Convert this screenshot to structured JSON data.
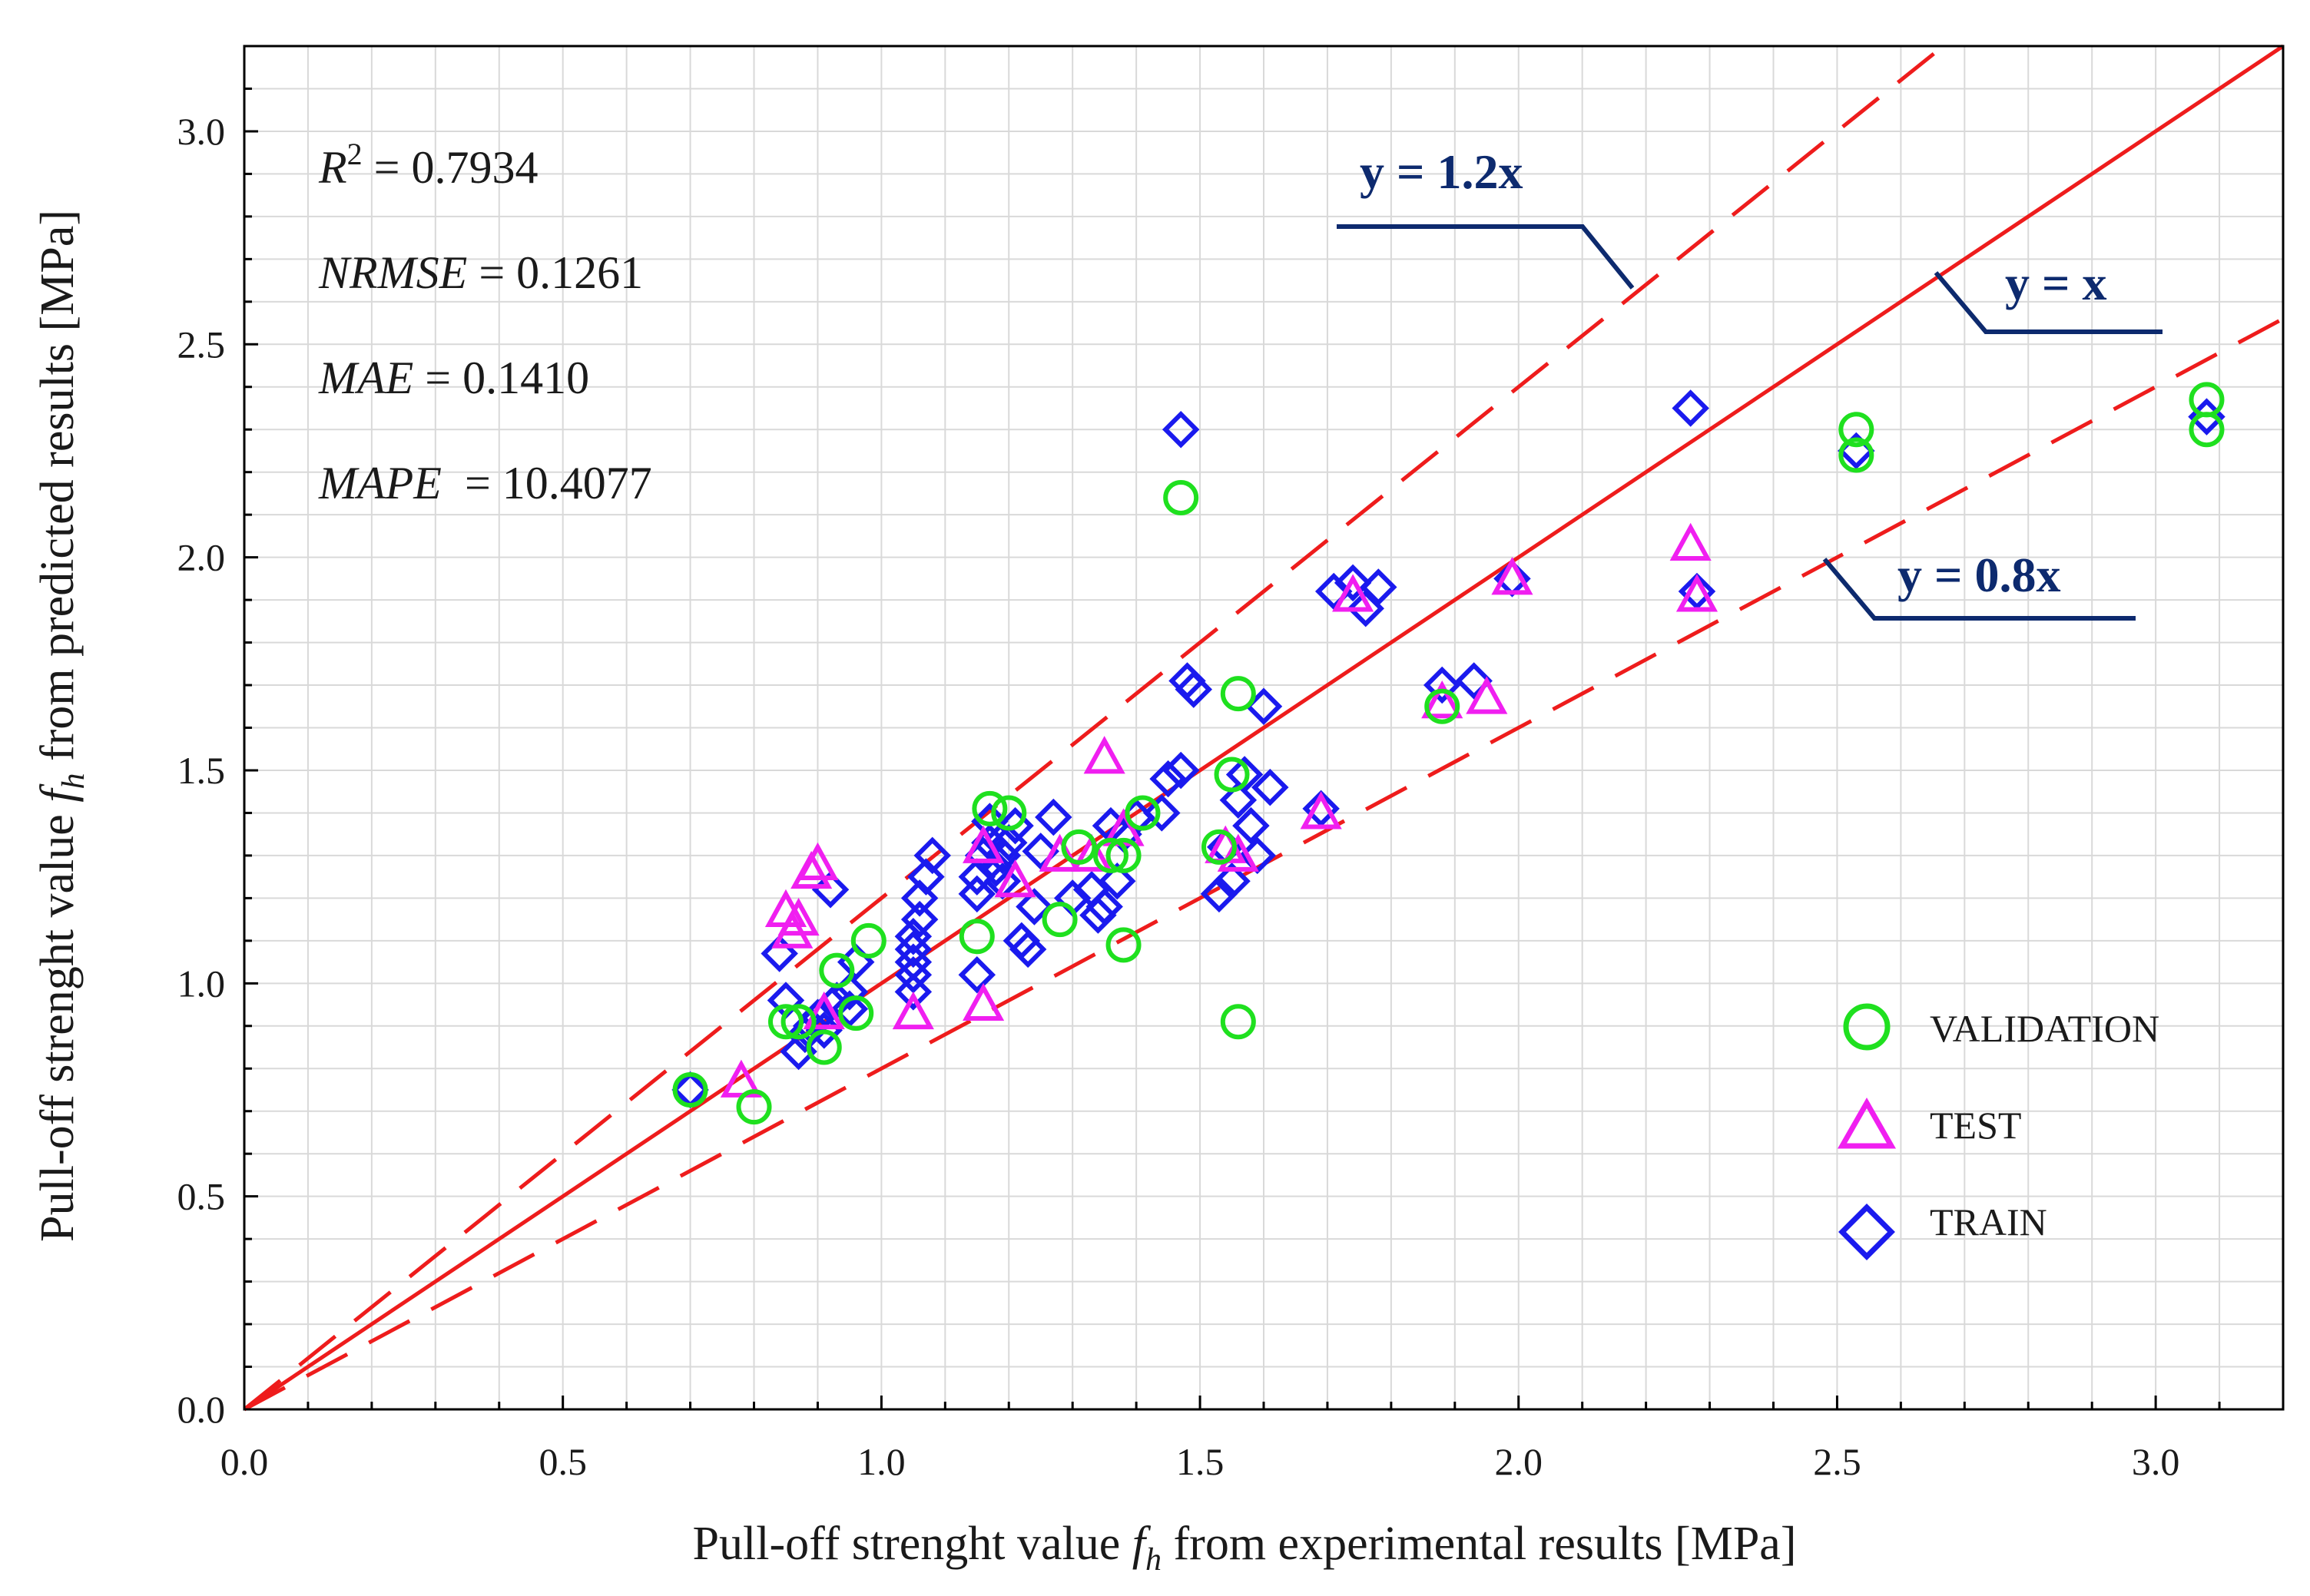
{
  "chart_data": {
    "type": "scatter",
    "xlabel_parts": [
      "Pull-off strenght value ",
      "f",
      "h",
      " from experimental results [MPa]"
    ],
    "ylabel_parts": [
      "Pull-off strenght value ",
      "f",
      "h",
      " from predicted results [MPa]"
    ],
    "xlim": [
      0,
      3.2
    ],
    "ylim": [
      0,
      3.2
    ],
    "major_ticks": [
      0,
      0.5,
      1.0,
      1.5,
      2.0,
      2.5,
      3.0
    ],
    "major_tick_labels": [
      "0.0",
      "0.5",
      "1.0",
      "1.5",
      "2.0",
      "2.5",
      "3.0"
    ],
    "minor_step": 0.1,
    "grid": true,
    "stats": [
      {
        "name": "R",
        "sup": "2",
        "rest": " = 0.7934"
      },
      {
        "name": "NRMSE",
        "sup": "",
        "rest": " = 0.1261"
      },
      {
        "name": "MAE",
        "sup": "",
        "rest": " = 0.1410"
      },
      {
        "name": "MAPE",
        "sup": "",
        "rest": "  = 10.4077"
      }
    ],
    "reference_lines": [
      {
        "label": "y = 1.2x",
        "slope": 1.2,
        "style": "dashed",
        "color": "#ee1c1c"
      },
      {
        "label": "y = x",
        "slope": 1.0,
        "style": "solid",
        "color": "#ee1c1c"
      },
      {
        "label": "y = 0.8x",
        "slope": 0.8,
        "style": "dashed",
        "color": "#ee1c1c"
      }
    ],
    "legend": {
      "placement": "bottom-right",
      "entries": [
        {
          "label": "VALIDATION",
          "marker": "circle",
          "color": "#1fe01f"
        },
        {
          "label": "TEST",
          "marker": "triangle",
          "color": "#f01ff0"
        },
        {
          "label": "TRAIN",
          "marker": "diamond",
          "color": "#1a1aee"
        }
      ]
    },
    "series": [
      {
        "name": "TRAIN",
        "marker": "diamond",
        "color": "#1a1aee",
        "points": [
          [
            0.7,
            0.75
          ],
          [
            0.85,
            0.96
          ],
          [
            0.87,
            0.84
          ],
          [
            0.88,
            0.88
          ],
          [
            0.89,
            0.9
          ],
          [
            0.9,
            0.92
          ],
          [
            0.91,
            0.89
          ],
          [
            0.93,
            0.96
          ],
          [
            0.95,
            0.94
          ],
          [
            0.96,
            1.05
          ],
          [
            0.92,
            1.22
          ],
          [
            0.95,
            0.98
          ],
          [
            0.84,
            1.07
          ],
          [
            1.05,
            0.98
          ],
          [
            1.05,
            1.02
          ],
          [
            1.05,
            1.05
          ],
          [
            1.05,
            1.08
          ],
          [
            1.05,
            1.11
          ],
          [
            1.06,
            1.15
          ],
          [
            1.06,
            1.2
          ],
          [
            1.07,
            1.25
          ],
          [
            1.08,
            1.3
          ],
          [
            1.15,
            1.02
          ],
          [
            1.15,
            1.21
          ],
          [
            1.15,
            1.25
          ],
          [
            1.16,
            1.3
          ],
          [
            1.17,
            1.33
          ],
          [
            1.17,
            1.38
          ],
          [
            1.18,
            1.27
          ],
          [
            1.19,
            1.24
          ],
          [
            1.19,
            1.3
          ],
          [
            1.2,
            1.33
          ],
          [
            1.21,
            1.37
          ],
          [
            1.22,
            1.1
          ],
          [
            1.23,
            1.08
          ],
          [
            1.24,
            1.18
          ],
          [
            1.25,
            1.31
          ],
          [
            1.27,
            1.39
          ],
          [
            1.3,
            1.2
          ],
          [
            1.33,
            1.22
          ],
          [
            1.34,
            1.16
          ],
          [
            1.35,
            1.18
          ],
          [
            1.36,
            1.37
          ],
          [
            1.37,
            1.24
          ],
          [
            1.38,
            1.35
          ],
          [
            1.4,
            1.39
          ],
          [
            1.44,
            1.4
          ],
          [
            1.45,
            1.48
          ],
          [
            1.47,
            1.5
          ],
          [
            1.47,
            2.3
          ],
          [
            1.48,
            1.71
          ],
          [
            1.49,
            1.69
          ],
          [
            1.53,
            1.21
          ],
          [
            1.54,
            1.32
          ],
          [
            1.55,
            1.24
          ],
          [
            1.56,
            1.43
          ],
          [
            1.57,
            1.49
          ],
          [
            1.58,
            1.37
          ],
          [
            1.59,
            1.3
          ],
          [
            1.6,
            1.65
          ],
          [
            1.61,
            1.46
          ],
          [
            1.69,
            1.41
          ],
          [
            1.71,
            1.92
          ],
          [
            1.74,
            1.94
          ],
          [
            1.76,
            1.88
          ],
          [
            1.78,
            1.93
          ],
          [
            1.88,
            1.7
          ],
          [
            1.93,
            1.71
          ],
          [
            1.99,
            1.95
          ],
          [
            2.27,
            2.35
          ],
          [
            2.28,
            1.92
          ],
          [
            2.53,
            2.25
          ],
          [
            3.08,
            2.33
          ]
        ]
      },
      {
        "name": "TEST",
        "marker": "triangle",
        "color": "#f01ff0",
        "points": [
          [
            0.78,
            0.77
          ],
          [
            0.85,
            1.17
          ],
          [
            0.86,
            1.12
          ],
          [
            0.87,
            1.15
          ],
          [
            0.89,
            1.26
          ],
          [
            0.9,
            1.28
          ],
          [
            0.91,
            0.93
          ],
          [
            1.05,
            0.93
          ],
          [
            1.16,
            1.32
          ],
          [
            1.16,
            0.95
          ],
          [
            1.21,
            1.24
          ],
          [
            1.28,
            1.3
          ],
          [
            1.33,
            1.3
          ],
          [
            1.35,
            1.53
          ],
          [
            1.38,
            1.36
          ],
          [
            1.54,
            1.32
          ],
          [
            1.56,
            1.3
          ],
          [
            1.69,
            1.4
          ],
          [
            1.74,
            1.91
          ],
          [
            1.88,
            1.66
          ],
          [
            1.95,
            1.67
          ],
          [
            1.99,
            1.95
          ],
          [
            2.27,
            2.03
          ],
          [
            2.28,
            1.91
          ]
        ]
      },
      {
        "name": "VALIDATION",
        "marker": "circle",
        "color": "#1fe01f",
        "points": [
          [
            0.7,
            0.75
          ],
          [
            0.8,
            0.71
          ],
          [
            0.85,
            0.91
          ],
          [
            0.87,
            0.91
          ],
          [
            0.91,
            0.85
          ],
          [
            0.93,
            1.03
          ],
          [
            0.96,
            0.93
          ],
          [
            0.98,
            1.1
          ],
          [
            1.15,
            1.11
          ],
          [
            1.17,
            1.41
          ],
          [
            1.2,
            1.4
          ],
          [
            1.28,
            1.15
          ],
          [
            1.31,
            1.32
          ],
          [
            1.36,
            1.3
          ],
          [
            1.38,
            1.3
          ],
          [
            1.38,
            1.09
          ],
          [
            1.41,
            1.4
          ],
          [
            1.47,
            2.14
          ],
          [
            1.53,
            1.32
          ],
          [
            1.55,
            1.49
          ],
          [
            1.56,
            1.68
          ],
          [
            1.56,
            0.91
          ],
          [
            1.88,
            1.65
          ],
          [
            2.53,
            2.3
          ],
          [
            2.53,
            2.24
          ],
          [
            3.08,
            2.37
          ],
          [
            3.08,
            2.3
          ]
        ]
      }
    ]
  }
}
